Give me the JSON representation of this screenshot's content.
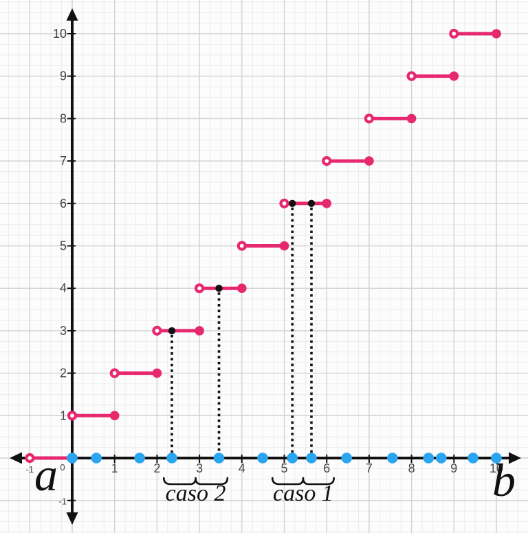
{
  "colors": {
    "background": "#fcfcfc",
    "pink": "#E6286F",
    "blue": "#2CA5F1",
    "black": "#111111",
    "grid_major": "#d2d2d2",
    "grid_minor": "#ececec",
    "axis": "#111111",
    "tick_label": "#454545"
  },
  "axes": {
    "x_ticks": [
      -1,
      1,
      2,
      3,
      4,
      5,
      6,
      7,
      8,
      9,
      10
    ],
    "y_ticks": [
      -1,
      1,
      2,
      3,
      4,
      5,
      6,
      7,
      8,
      9,
      10
    ],
    "origin_label": "0",
    "small_labels": [
      -1,
      0
    ]
  },
  "chart_data": {
    "type": "line",
    "subtype": "step-function",
    "title": "",
    "xlabel": "",
    "ylabel": "",
    "xlim": [
      -1.7,
      10.75
    ],
    "ylim": [
      -1.77,
      10.79
    ],
    "grid": true,
    "minor_grid_per_unit": 4,
    "steps": [
      {
        "y": 0,
        "x_open": -1,
        "x_closed": 0
      },
      {
        "y": 1,
        "x_open": 0,
        "x_closed": 1
      },
      {
        "y": 2,
        "x_open": 1,
        "x_closed": 2
      },
      {
        "y": 3,
        "x_open": 2,
        "x_closed": 3
      },
      {
        "y": 4,
        "x_open": 3,
        "x_closed": 4
      },
      {
        "y": 5,
        "x_open": 4,
        "x_closed": 5
      },
      {
        "y": 6,
        "x_open": 5,
        "x_closed": 6
      },
      {
        "y": 7,
        "x_open": 6,
        "x_closed": 7
      },
      {
        "y": 8,
        "x_open": 7,
        "x_closed": 8
      },
      {
        "y": 9,
        "x_open": 8,
        "x_closed": 9
      },
      {
        "y": 10,
        "x_open": 9,
        "x_closed": 10
      }
    ],
    "axis_points_x": [
      0,
      0.57,
      1.59,
      2.35,
      3.46,
      4.49,
      5.19,
      5.64,
      6.47,
      7.55,
      8.4,
      8.7,
      9.45,
      10
    ],
    "marked_points": [
      {
        "x": 2.35,
        "y": 3
      },
      {
        "x": 3.46,
        "y": 4
      },
      {
        "x": 5.19,
        "y": 6
      },
      {
        "x": 5.64,
        "y": 6
      }
    ],
    "braces": [
      {
        "label": "caso 2",
        "x_start": 2.16,
        "x_end": 3.66
      },
      {
        "label": "caso 1",
        "x_start": 4.72,
        "x_end": 6.17
      }
    ],
    "axis_endpoint_labels": {
      "left": "a",
      "right": "b"
    }
  }
}
